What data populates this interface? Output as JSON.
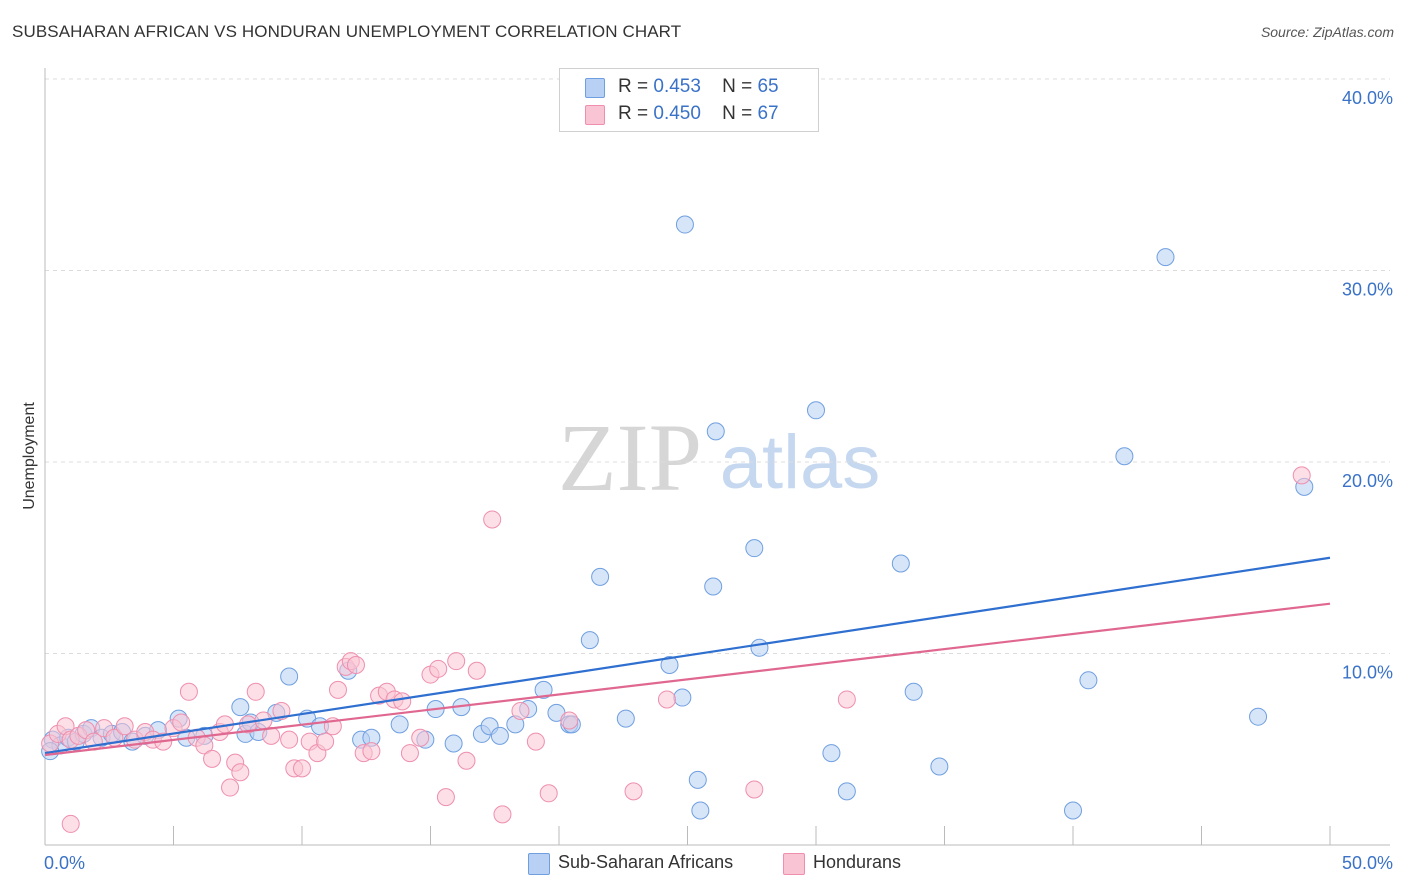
{
  "title": "SUBSAHARAN AFRICAN VS HONDURAN UNEMPLOYMENT CORRELATION CHART",
  "source": "Source: ZipAtlas.com",
  "watermark": {
    "zip": "ZIP",
    "atlas": "atlas"
  },
  "legend": [
    {
      "r_label": "R =",
      "r_value": "0.453",
      "n_label": "N =",
      "n_value": "65",
      "fill": "#b7d0f3",
      "stroke": "#6f9fe0"
    },
    {
      "r_label": "R =",
      "r_value": "0.450",
      "n_label": "N =",
      "n_value": "67",
      "fill": "#f9c4d4",
      "stroke": "#ee8fae"
    }
  ],
  "bottom_legend": [
    {
      "label": "Sub-Saharan Africans",
      "fill": "#b7d0f3",
      "stroke": "#6f9fe0"
    },
    {
      "label": "Hondurans",
      "fill": "#f9c4d4",
      "stroke": "#ee8fae"
    }
  ],
  "chart_data": {
    "type": "scatter",
    "title": "SUBSAHARAN AFRICAN VS HONDURAN UNEMPLOYMENT CORRELATION CHART",
    "xlabel": "",
    "ylabel": "Unemployment",
    "xlim": [
      0,
      50
    ],
    "ylim": [
      0,
      40
    ],
    "x_tick_labels": [
      "0.0%",
      "50.0%"
    ],
    "y_ticks": [
      10,
      20,
      30,
      40
    ],
    "y_tick_labels": [
      "10.0%",
      "20.0%",
      "30.0%",
      "40.0%"
    ],
    "grid": true,
    "legend_position": "top-center",
    "series": [
      {
        "name": "Sub-Saharan Africans",
        "color": "#6f9fe0",
        "fill": "#b7d0f3",
        "trend_color": "#2f6fd0",
        "trend": {
          "x": [
            0,
            50
          ],
          "y": [
            4.8,
            15.0
          ]
        },
        "points": [
          [
            0.3,
            5.5
          ],
          [
            0.6,
            5.2
          ],
          [
            0.9,
            5.6
          ],
          [
            1.2,
            5.4
          ],
          [
            1.5,
            5.8
          ],
          [
            1.8,
            6.1
          ],
          [
            2.2,
            5.6
          ],
          [
            2.6,
            5.8
          ],
          [
            3.0,
            5.9
          ],
          [
            3.4,
            5.4
          ],
          [
            3.9,
            5.7
          ],
          [
            4.4,
            6.0
          ],
          [
            5.2,
            6.6
          ],
          [
            5.5,
            5.6
          ],
          [
            6.2,
            5.7
          ],
          [
            7.6,
            7.2
          ],
          [
            7.8,
            5.8
          ],
          [
            8.0,
            6.4
          ],
          [
            8.3,
            5.9
          ],
          [
            9.0,
            6.9
          ],
          [
            9.5,
            8.8
          ],
          [
            10.2,
            6.6
          ],
          [
            10.7,
            6.2
          ],
          [
            11.8,
            9.1
          ],
          [
            12.3,
            5.5
          ],
          [
            12.7,
            5.6
          ],
          [
            13.8,
            6.3
          ],
          [
            14.8,
            5.5
          ],
          [
            15.2,
            7.1
          ],
          [
            15.9,
            5.3
          ],
          [
            16.2,
            7.2
          ],
          [
            17.0,
            5.8
          ],
          [
            17.3,
            6.2
          ],
          [
            17.7,
            5.7
          ],
          [
            18.3,
            6.3
          ],
          [
            18.8,
            7.1
          ],
          [
            19.4,
            8.1
          ],
          [
            19.9,
            6.9
          ],
          [
            20.4,
            6.3
          ],
          [
            20.5,
            6.3
          ],
          [
            21.2,
            10.7
          ],
          [
            21.6,
            14.0
          ],
          [
            22.6,
            6.6
          ],
          [
            24.3,
            9.4
          ],
          [
            24.8,
            7.7
          ],
          [
            24.9,
            32.4
          ],
          [
            25.4,
            3.4
          ],
          [
            25.5,
            1.8
          ],
          [
            26.0,
            13.5
          ],
          [
            26.1,
            21.6
          ],
          [
            27.6,
            15.5
          ],
          [
            27.8,
            10.3
          ],
          [
            30.0,
            22.7
          ],
          [
            30.6,
            4.8
          ],
          [
            31.2,
            2.8
          ],
          [
            33.3,
            14.7
          ],
          [
            33.8,
            8.0
          ],
          [
            34.8,
            4.1
          ],
          [
            40.0,
            1.8
          ],
          [
            40.6,
            8.6
          ],
          [
            42.0,
            20.3
          ],
          [
            43.6,
            30.7
          ],
          [
            47.2,
            6.7
          ],
          [
            49.0,
            18.7
          ],
          [
            0.2,
            4.9
          ]
        ]
      },
      {
        "name": "Hondurans",
        "color": "#ee8fae",
        "fill": "#f9c4d4",
        "trend_color": "#e06890",
        "trend": {
          "x": [
            0,
            50
          ],
          "y": [
            4.7,
            12.6
          ]
        },
        "points": [
          [
            0.2,
            5.3
          ],
          [
            0.5,
            5.8
          ],
          [
            0.8,
            6.2
          ],
          [
            1.0,
            5.5
          ],
          [
            1.3,
            5.7
          ],
          [
            1.6,
            6.0
          ],
          [
            1.9,
            5.4
          ],
          [
            2.3,
            6.1
          ],
          [
            2.7,
            5.6
          ],
          [
            3.1,
            6.2
          ],
          [
            3.5,
            5.5
          ],
          [
            3.9,
            5.9
          ],
          [
            4.2,
            5.5
          ],
          [
            4.6,
            5.4
          ],
          [
            5.0,
            6.1
          ],
          [
            5.3,
            6.4
          ],
          [
            5.6,
            8.0
          ],
          [
            5.9,
            5.6
          ],
          [
            6.2,
            5.2
          ],
          [
            6.5,
            4.5
          ],
          [
            6.8,
            5.9
          ],
          [
            7.0,
            6.3
          ],
          [
            7.2,
            3.0
          ],
          [
            7.4,
            4.3
          ],
          [
            7.6,
            3.8
          ],
          [
            7.9,
            6.3
          ],
          [
            8.2,
            8.0
          ],
          [
            8.5,
            6.5
          ],
          [
            8.8,
            5.7
          ],
          [
            9.2,
            7.0
          ],
          [
            9.5,
            5.5
          ],
          [
            9.7,
            4.0
          ],
          [
            10.0,
            4.0
          ],
          [
            10.3,
            5.4
          ],
          [
            10.6,
            4.8
          ],
          [
            10.9,
            5.4
          ],
          [
            11.2,
            6.2
          ],
          [
            11.4,
            8.1
          ],
          [
            11.7,
            9.3
          ],
          [
            11.9,
            9.6
          ],
          [
            12.1,
            9.4
          ],
          [
            12.4,
            4.8
          ],
          [
            12.7,
            4.9
          ],
          [
            13.0,
            7.8
          ],
          [
            13.3,
            8.0
          ],
          [
            13.6,
            7.6
          ],
          [
            13.9,
            7.5
          ],
          [
            14.2,
            4.8
          ],
          [
            14.6,
            5.6
          ],
          [
            15.0,
            8.9
          ],
          [
            15.3,
            9.2
          ],
          [
            15.6,
            2.5
          ],
          [
            16.0,
            9.6
          ],
          [
            16.4,
            4.4
          ],
          [
            16.8,
            9.1
          ],
          [
            17.4,
            17.0
          ],
          [
            17.8,
            1.6
          ],
          [
            18.5,
            7.0
          ],
          [
            19.1,
            5.4
          ],
          [
            19.6,
            2.7
          ],
          [
            20.4,
            6.5
          ],
          [
            22.9,
            2.8
          ],
          [
            24.2,
            7.6
          ],
          [
            27.6,
            2.9
          ],
          [
            31.2,
            7.6
          ],
          [
            48.9,
            19.3
          ],
          [
            1.0,
            1.1
          ]
        ]
      }
    ]
  }
}
